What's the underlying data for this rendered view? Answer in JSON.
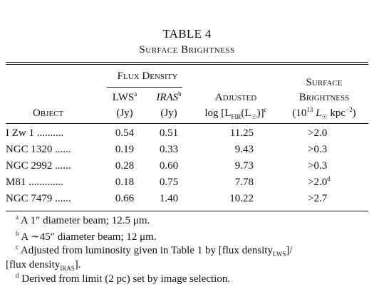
{
  "table": {
    "number": "TABLE 4",
    "caption": "Surface Brightness",
    "group_header": "Flux Density",
    "columns": {
      "object": "Object",
      "lws": "LWS",
      "lws_note": "a",
      "iras": "IRAS",
      "iras_note": "b",
      "jy1": "(Jy)",
      "jy2": "(Jy)",
      "adjusted": "Adjusted",
      "adjusted_expr_pre": "log [L",
      "adjusted_expr_sub": "FIR",
      "adjusted_expr_mid": "(L",
      "adjusted_expr_sun": "☉",
      "adjusted_expr_post": ")]",
      "adjusted_note": "c",
      "sb_line1": "Surface",
      "sb_line2": "Brightness",
      "sb_units_pre": "(10",
      "sb_units_exp": "13",
      "sb_units_mid": " L",
      "sb_units_sun": "☉",
      "sb_units_kpc": " kpc",
      "sb_units_exp2": "−2",
      "sb_units_post": ")"
    },
    "rows": [
      {
        "object": "I Zw 1 ..........",
        "lws": "0.54",
        "iras": "0.51",
        "adjusted": "11.25",
        "sb": ">2.0",
        "sb_note": ""
      },
      {
        "object": "NGC 1320 ......",
        "lws": "0.19",
        "iras": "0.33",
        "adjusted": "9.43",
        "sb": ">0.3",
        "sb_note": ""
      },
      {
        "object": "NGC 2992 ......",
        "lws": "0.28",
        "iras": "0.60",
        "adjusted": "9.73",
        "sb": ">0.3",
        "sb_note": ""
      },
      {
        "object": "M81 .............",
        "lws": "0.18",
        "iras": "0.75",
        "adjusted": "7.78",
        "sb": ">2.0",
        "sb_note": "d"
      },
      {
        "object": "NGC 7479 ......",
        "lws": "0.66",
        "iras": "1.40",
        "adjusted": "10.22",
        "sb": ">2.7",
        "sb_note": ""
      }
    ],
    "footnotes": [
      {
        "mark": "a",
        "text": " A 1″ diameter beam; 12.5 μm."
      },
      {
        "mark": "b",
        "text": " A ∼45″ diameter beam; 12 μm."
      },
      {
        "mark": "c",
        "text": " Adjusted from luminosity given in Table 1 by [flux density",
        "sub1": "LWS",
        "text2": "]/"
      },
      {
        "cont": "[flux density",
        "sub": "IRAS",
        "cont2": "]."
      },
      {
        "mark": "d",
        "text": " Derived from limit (2 pc) set by image selection."
      }
    ]
  }
}
